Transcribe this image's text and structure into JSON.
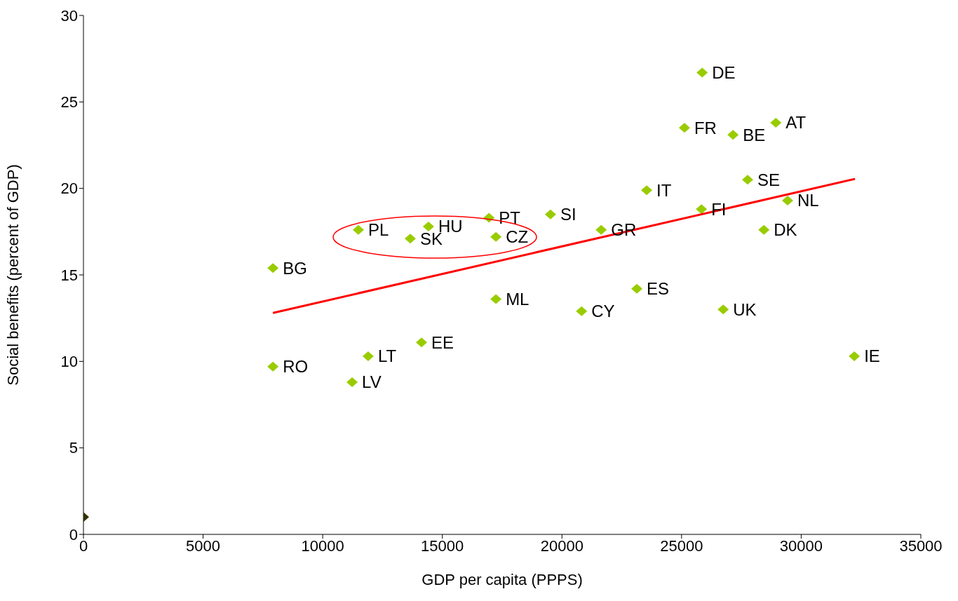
{
  "chart_data": {
    "type": "scatter",
    "xlabel": "GDP per capita (PPPS)",
    "ylabel": "Social benefits (percent of GDP)",
    "xlim": [
      0,
      35000
    ],
    "xticks": [
      0,
      5000,
      10000,
      15000,
      20000,
      25000,
      30000,
      35000
    ],
    "ylim": [
      0,
      30
    ],
    "yticks": [
      0,
      5,
      10,
      15,
      20,
      25,
      30
    ],
    "grid": false,
    "marker": "diamond",
    "series": [
      {
        "color": "#99cc00",
        "x": [
          25860,
          25120,
          27150,
          28940,
          27760,
          23540,
          29430,
          25830,
          28440,
          21640,
          19520,
          16950,
          17240,
          14420,
          11490,
          13660,
          7920,
          23130,
          17240,
          20820,
          26740,
          14130,
          11900,
          7920,
          11230,
          32220
        ],
        "values": [
          26.7,
          23.5,
          23.1,
          23.8,
          20.5,
          19.9,
          19.3,
          18.8,
          17.6,
          17.6,
          18.5,
          18.3,
          17.2,
          17.8,
          17.6,
          17.1,
          15.4,
          14.2,
          13.6,
          12.9,
          13.0,
          11.1,
          10.3,
          9.7,
          8.8,
          10.3
        ]
      },
      {
        "color": "#333300",
        "x": [
          0
        ],
        "values": [
          1.0
        ]
      },
      {
        "type": "line",
        "color": "#ff0000",
        "marker": "none",
        "line_style": "solid",
        "x": [
          7920,
          32250
        ],
        "values": [
          12.8,
          20.55
        ]
      }
    ],
    "annotations": [
      {
        "text": "DE",
        "x": 25860,
        "y": 26.7
      },
      {
        "text": "FR",
        "x": 25120,
        "y": 23.5
      },
      {
        "text": "BE",
        "x": 27150,
        "y": 23.1
      },
      {
        "text": "AT",
        "x": 28940,
        "y": 23.8
      },
      {
        "text": "SE",
        "x": 27760,
        "y": 20.5
      },
      {
        "text": "IT",
        "x": 23540,
        "y": 19.9
      },
      {
        "text": "NL",
        "x": 29430,
        "y": 19.3
      },
      {
        "text": "FI",
        "x": 25830,
        "y": 18.8
      },
      {
        "text": "DK",
        "x": 28440,
        "y": 17.6
      },
      {
        "text": "GR",
        "x": 21640,
        "y": 17.6
      },
      {
        "text": "SI",
        "x": 19520,
        "y": 18.5
      },
      {
        "text": "PT",
        "x": 16950,
        "y": 18.3
      },
      {
        "text": "CZ",
        "x": 17240,
        "y": 17.2
      },
      {
        "text": "HU",
        "x": 14420,
        "y": 17.8
      },
      {
        "text": "PL",
        "x": 11490,
        "y": 17.6
      },
      {
        "text": "SK",
        "x": 13660,
        "y": 17.1
      },
      {
        "text": "BG",
        "x": 7920,
        "y": 15.4
      },
      {
        "text": "ES",
        "x": 23130,
        "y": 14.2
      },
      {
        "text": "ML",
        "x": 17240,
        "y": 13.6
      },
      {
        "text": "CY",
        "x": 20820,
        "y": 12.9
      },
      {
        "text": "UK",
        "x": 26740,
        "y": 13.0
      },
      {
        "text": "EE",
        "x": 14130,
        "y": 11.1
      },
      {
        "text": "LT",
        "x": 11900,
        "y": 10.3
      },
      {
        "text": "RO",
        "x": 7920,
        "y": 9.7
      },
      {
        "text": "LV",
        "x": 11230,
        "y": 8.8
      },
      {
        "text": "IE",
        "x": 32220,
        "y": 10.3
      }
    ]
  }
}
